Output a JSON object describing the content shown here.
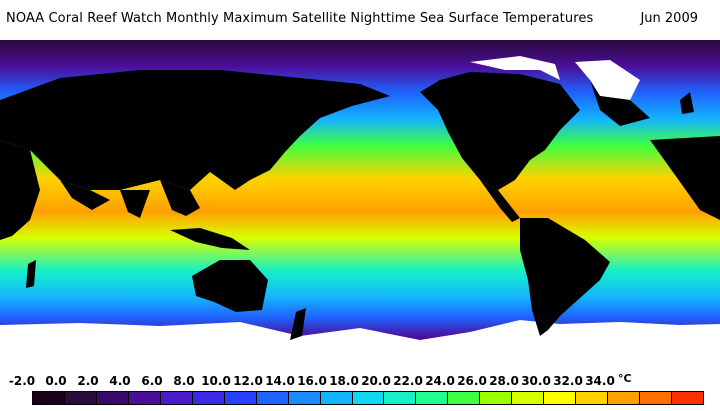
{
  "header": {
    "title": "NOAA Coral Reef Watch Monthly Maximum Satellite Nighttime Sea Surface Temperatures",
    "date": "Jun 2009"
  },
  "legend": {
    "ticks": [
      "-2.0",
      "0.0",
      "2.0",
      "4.0",
      "6.0",
      "8.0",
      "10.0",
      "12.0",
      "14.0",
      "16.0",
      "18.0",
      "20.0",
      "22.0",
      "24.0",
      "26.0",
      "28.0",
      "30.0",
      "32.0",
      "34.0"
    ],
    "unit": "°C",
    "colors": [
      "#1a0018",
      "#2b0a3e",
      "#3a0a6a",
      "#4b0e9a",
      "#4a1cc8",
      "#3a2ae6",
      "#2a40ff",
      "#1f64ff",
      "#1a8cff",
      "#14b4ff",
      "#10d8f0",
      "#14f0c8",
      "#20ff8c",
      "#40ff40",
      "#9cff00",
      "#d8ff00",
      "#ffff00",
      "#ffd200",
      "#ffa000",
      "#ff7000",
      "#ff3000"
    ]
  },
  "map_colors": {
    "land": "#000000",
    "ice": "#ffffff",
    "ocean_stops": [
      "#2b0a3e",
      "#4b0e9a",
      "#3a2ae6",
      "#1f64ff",
      "#14b4ff",
      "#14f0c8",
      "#40ff40",
      "#d8ff00",
      "#ffd200",
      "#ffa000"
    ]
  }
}
